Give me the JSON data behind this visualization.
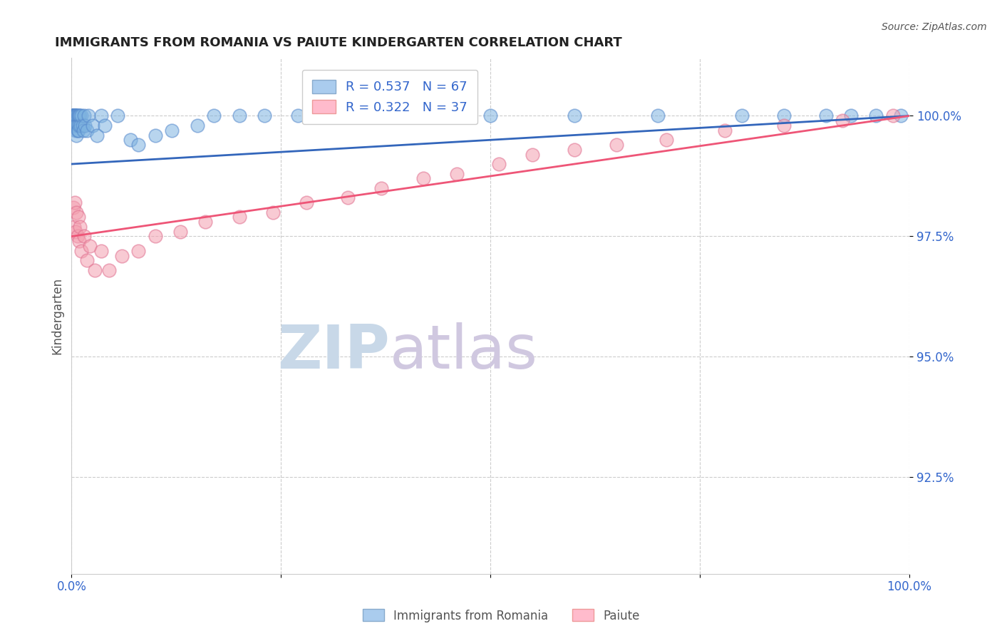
{
  "title": "IMMIGRANTS FROM ROMANIA VS PAIUTE KINDERGARTEN CORRELATION CHART",
  "source": "Source: ZipAtlas.com",
  "ylabel": "Kindergarten",
  "legend_blue_r": "R = 0.537",
  "legend_blue_n": "N = 67",
  "legend_pink_r": "R = 0.322",
  "legend_pink_n": "N = 37",
  "legend_label_blue": "Immigrants from Romania",
  "legend_label_pink": "Paiute",
  "ytick_labels": [
    "100.0%",
    "97.5%",
    "95.0%",
    "92.5%"
  ],
  "ytick_values": [
    1.0,
    0.975,
    0.95,
    0.925
  ],
  "xlim": [
    0.0,
    1.0
  ],
  "ylim": [
    0.905,
    1.012
  ],
  "blue_color": "#7EB3E0",
  "pink_color": "#F4A0B0",
  "blue_edge_color": "#5588CC",
  "pink_edge_color": "#E07090",
  "blue_line_color": "#3366BB",
  "pink_line_color": "#EE5577",
  "background_color": "#FFFFFF",
  "watermark_color": "#C8D8E8",
  "watermark_color2": "#D0C8E0",
  "blue_scatter_x": [
    0.001,
    0.001,
    0.002,
    0.002,
    0.002,
    0.002,
    0.002,
    0.003,
    0.003,
    0.003,
    0.003,
    0.003,
    0.003,
    0.003,
    0.004,
    0.004,
    0.004,
    0.004,
    0.005,
    0.005,
    0.005,
    0.005,
    0.006,
    0.006,
    0.006,
    0.006,
    0.007,
    0.007,
    0.007,
    0.008,
    0.008,
    0.009,
    0.009,
    0.01,
    0.011,
    0.012,
    0.013,
    0.014,
    0.015,
    0.016,
    0.018,
    0.02,
    0.025,
    0.03,
    0.035,
    0.04,
    0.055,
    0.07,
    0.08,
    0.1,
    0.12,
    0.15,
    0.17,
    0.2,
    0.23,
    0.27,
    0.32,
    0.4,
    0.5,
    0.6,
    0.7,
    0.8,
    0.85,
    0.9,
    0.93,
    0.96,
    0.99
  ],
  "blue_scatter_y": [
    1.0,
    1.0,
    1.0,
    1.0,
    1.0,
    1.0,
    0.998,
    1.0,
    1.0,
    1.0,
    1.0,
    1.0,
    1.0,
    0.998,
    1.0,
    1.0,
    1.0,
    0.998,
    1.0,
    1.0,
    0.998,
    0.997,
    1.0,
    1.0,
    0.998,
    0.996,
    1.0,
    0.998,
    0.997,
    1.0,
    0.997,
    1.0,
    0.998,
    1.0,
    0.998,
    1.0,
    0.998,
    0.997,
    1.0,
    0.998,
    0.997,
    1.0,
    0.998,
    0.996,
    1.0,
    0.998,
    1.0,
    0.995,
    0.994,
    0.996,
    0.997,
    0.998,
    1.0,
    1.0,
    1.0,
    1.0,
    1.0,
    1.0,
    1.0,
    1.0,
    1.0,
    1.0,
    1.0,
    1.0,
    1.0,
    1.0,
    1.0
  ],
  "pink_scatter_x": [
    0.002,
    0.003,
    0.004,
    0.005,
    0.006,
    0.007,
    0.008,
    0.009,
    0.01,
    0.012,
    0.015,
    0.018,
    0.022,
    0.028,
    0.035,
    0.045,
    0.06,
    0.08,
    0.1,
    0.13,
    0.16,
    0.2,
    0.24,
    0.28,
    0.33,
    0.37,
    0.42,
    0.46,
    0.51,
    0.55,
    0.6,
    0.65,
    0.71,
    0.78,
    0.85,
    0.92,
    0.98
  ],
  "pink_scatter_y": [
    0.981,
    0.977,
    0.982,
    0.976,
    0.98,
    0.975,
    0.979,
    0.974,
    0.977,
    0.972,
    0.975,
    0.97,
    0.973,
    0.968,
    0.972,
    0.968,
    0.971,
    0.972,
    0.975,
    0.976,
    0.978,
    0.979,
    0.98,
    0.982,
    0.983,
    0.985,
    0.987,
    0.988,
    0.99,
    0.992,
    0.993,
    0.994,
    0.995,
    0.997,
    0.998,
    0.999,
    1.0
  ],
  "blue_trend_x": [
    0.0,
    1.0
  ],
  "blue_trend_y_start": 0.99,
  "blue_trend_y_end": 1.0,
  "pink_trend_x": [
    0.0,
    1.0
  ],
  "pink_trend_y_start": 0.975,
  "pink_trend_y_end": 1.0
}
